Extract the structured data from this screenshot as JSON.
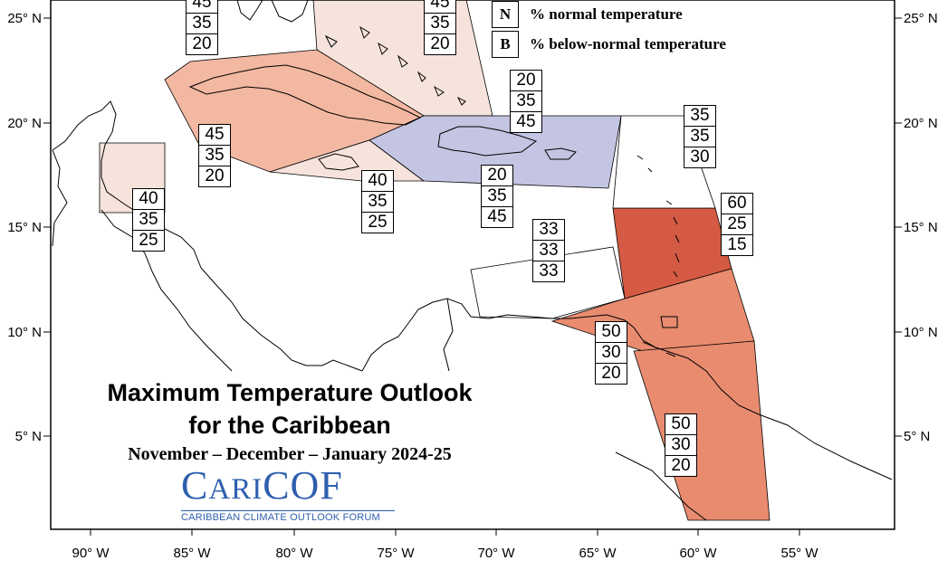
{
  "title": {
    "line1": "Maximum Temperature Outlook",
    "line2": "for the Caribbean",
    "period": "November – December – January 2024-25"
  },
  "logo": {
    "name": "CariCOF",
    "subtitle": "CARIBBEAN CLIMATE OUTLOOK FORUM"
  },
  "legend": [
    {
      "key": "N",
      "label": "% normal temperature"
    },
    {
      "key": "B",
      "label": "% below-normal temperature"
    }
  ],
  "axes": {
    "lat_labels": [
      "25° N",
      "20° N",
      "15° N",
      "10° N",
      "5° N"
    ],
    "lon_labels": [
      "90° W",
      "85° W",
      "80° W",
      "75° W",
      "70° W",
      "65° W",
      "60° W",
      "55° W"
    ]
  },
  "colors": {
    "above_40": "#f6e4dc",
    "above_45": "#f2b8a2",
    "above_50": "#e88b6f",
    "above_60": "#d45a43",
    "below_45": "#c4c5e3",
    "equal_33": "#ffffff"
  },
  "map_data": {
    "type": "probabilistic forecast map",
    "regions": [
      {
        "id": "bahamas-east",
        "probs": [
          45,
          35,
          20
        ],
        "color": "above_40"
      },
      {
        "id": "bahamas-north",
        "probs": [
          45,
          35,
          20
        ],
        "color": "above_40"
      },
      {
        "id": "cuba",
        "probs": [
          45,
          35,
          20
        ],
        "color": "above_45"
      },
      {
        "id": "cuba-south",
        "probs": [
          45,
          35,
          20
        ],
        "color": "above_40"
      },
      {
        "id": "belize",
        "probs": [
          40,
          35,
          25
        ],
        "color": "above_40"
      },
      {
        "id": "jamaica",
        "probs": [
          40,
          35,
          25
        ],
        "color": "above_40"
      },
      {
        "id": "hispaniola-north",
        "probs": [
          20,
          35,
          45
        ],
        "color": "below_45"
      },
      {
        "id": "hispaniola-south",
        "probs": [
          20,
          35,
          45
        ],
        "color": "below_45"
      },
      {
        "id": "leeward-islands",
        "probs": [
          35,
          35,
          30
        ],
        "color": "equal_33"
      },
      {
        "id": "windward-islands",
        "probs": [
          60,
          25,
          15
        ],
        "color": "above_60"
      },
      {
        "id": "abc-islands",
        "probs": [
          33,
          33,
          33
        ],
        "color": "equal_33"
      },
      {
        "id": "trinidad",
        "probs": [
          50,
          30,
          20
        ],
        "color": "above_50"
      },
      {
        "id": "guianas",
        "probs": [
          50,
          30,
          20
        ],
        "color": "above_50"
      }
    ]
  }
}
